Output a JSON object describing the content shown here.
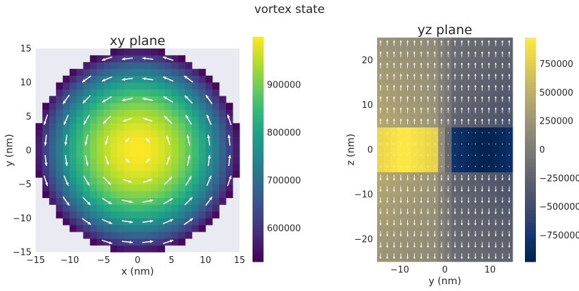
{
  "figure": {
    "title": "vortex state"
  },
  "chart_data": [
    {
      "type": "heatmap",
      "title": "xy plane",
      "xlabel": "x (nm)",
      "ylabel": "y (nm)",
      "xlim": [
        -15,
        15
      ],
      "ylim": [
        -15,
        15
      ],
      "x_ticks": [
        -15,
        -10,
        -5,
        0,
        5,
        10,
        15
      ],
      "y_ticks": [
        -15,
        -10,
        -5,
        0,
        5,
        10,
        15
      ],
      "colormap": "viridis",
      "colorbar_range": [
        530000,
        1000000
      ],
      "colorbar_ticks": [
        600000,
        700000,
        800000,
        900000
      ],
      "background_color": "#eaeaf2",
      "arrow_color": "#ffffff",
      "field": "in-plane vortex circulating counter-clockwise around the disk center; color is high at center and decreases radially",
      "disk_radius": 15,
      "center_value": 1000000,
      "edge_value": 540000
    },
    {
      "type": "heatmap",
      "title": "yz plane",
      "xlabel": "y (nm)",
      "ylabel": "z (nm)",
      "xlim": [
        -15,
        15
      ],
      "ylim": [
        -25,
        25
      ],
      "x_ticks": [
        -10,
        0,
        10
      ],
      "y_ticks": [
        -20,
        -10,
        0,
        10,
        20
      ],
      "colormap": "cividis",
      "colorbar_range": [
        -980000,
        980000
      ],
      "colorbar_ticks": [
        -750000,
        -500000,
        -250000,
        0,
        250000,
        500000,
        750000
      ],
      "arrow_color": "#ffffff",
      "field": "positive for y<0 and negative for y>0, strongest near z between -5 and 5; arrows point up for z>0 and down for z<0",
      "core_z_range": [
        -5,
        5
      ],
      "core_peak": 980000,
      "outer_value": 400000
    }
  ]
}
